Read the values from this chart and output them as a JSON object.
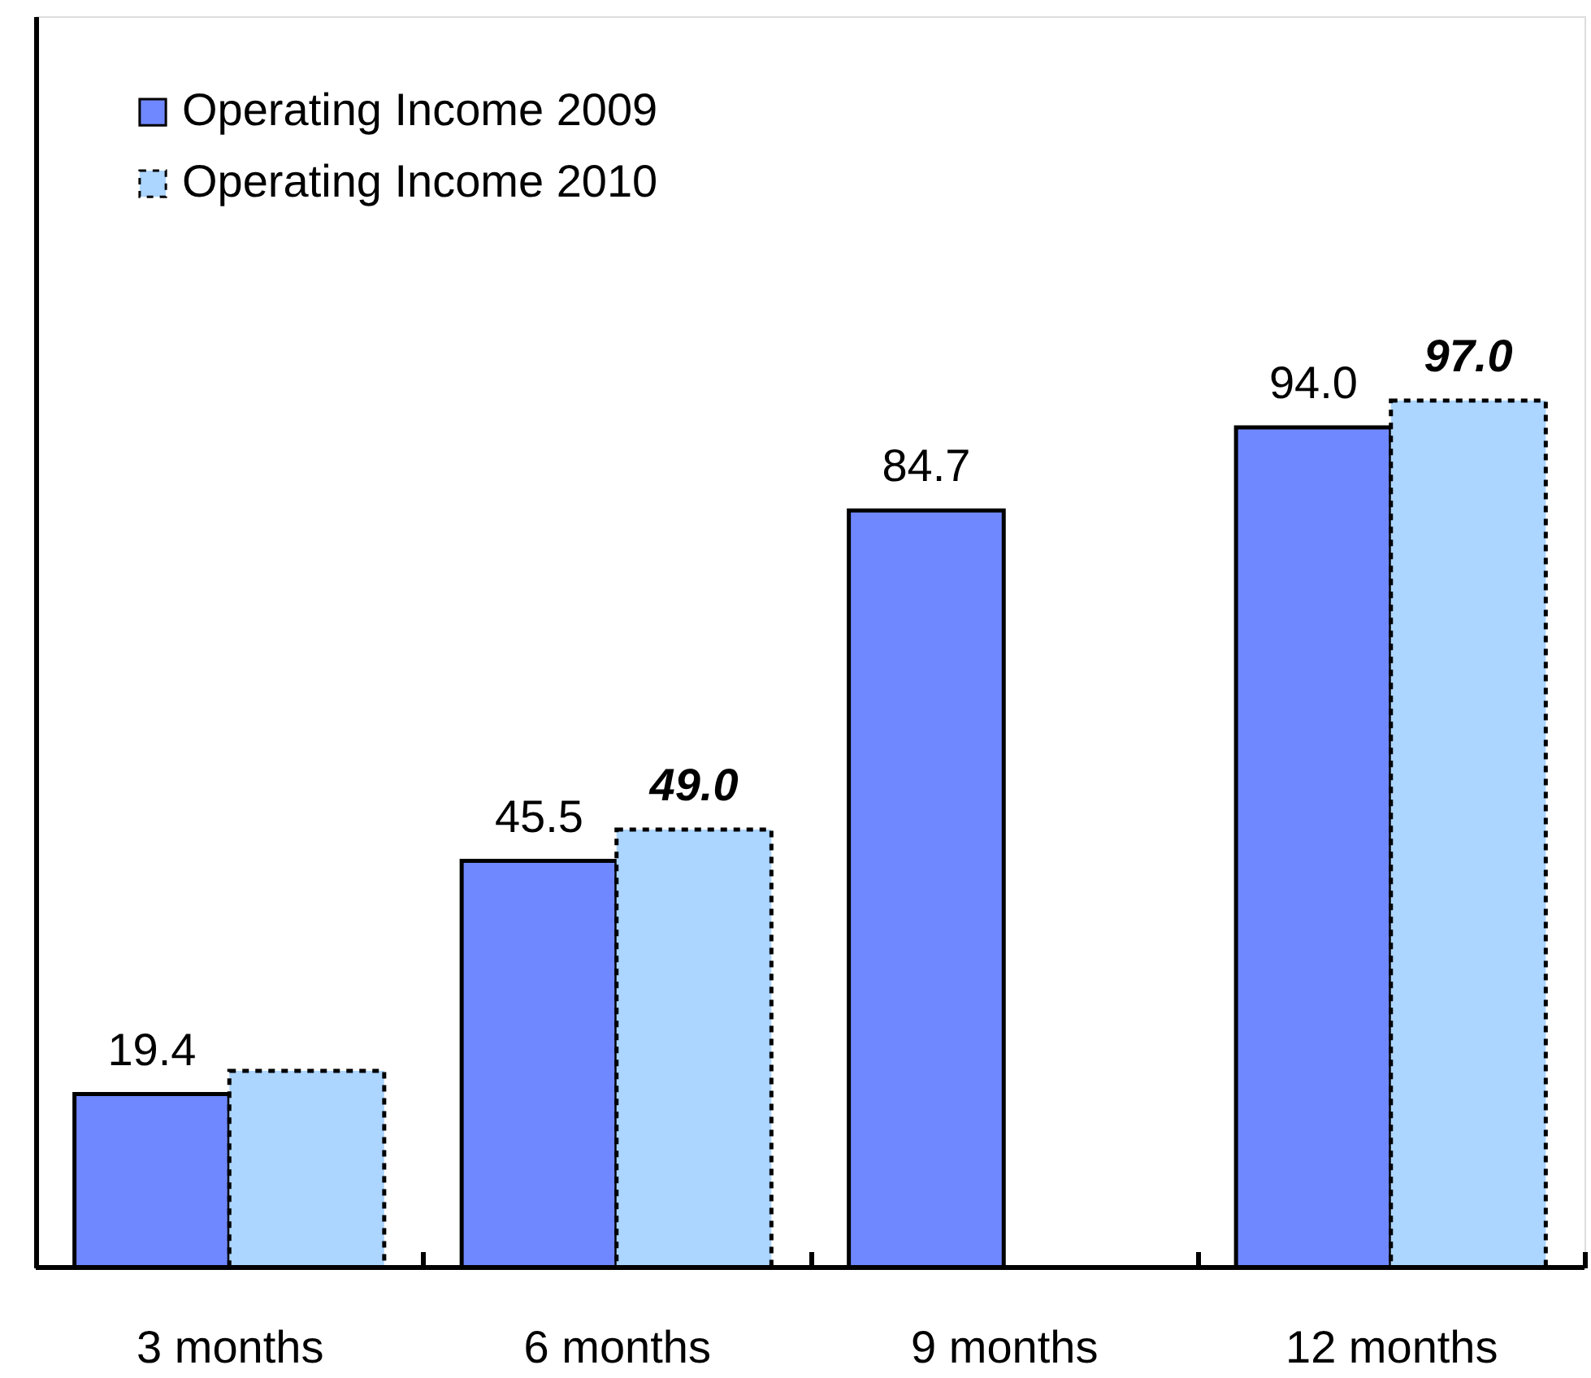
{
  "chart_data": {
    "type": "bar",
    "categories": [
      "3 months",
      "6 months",
      "9 months",
      "12 months"
    ],
    "series": [
      {
        "name": "Operating Income 2009",
        "color": "#7088ff",
        "values": [
          19.4,
          45.5,
          84.7,
          94.0
        ],
        "value_labels": [
          "19.4",
          "45.5",
          "84.7",
          "94.0"
        ]
      },
      {
        "name": "Operating Income 2010",
        "color": "#acd5ff",
        "values": [
          22,
          49.0,
          null,
          97.0
        ],
        "value_labels": [
          null,
          "49.0",
          null,
          "97.0"
        ],
        "line_style": "dotted"
      }
    ],
    "ylim": [
      0,
      140
    ],
    "tick_labels": "x",
    "legend": "top left"
  }
}
